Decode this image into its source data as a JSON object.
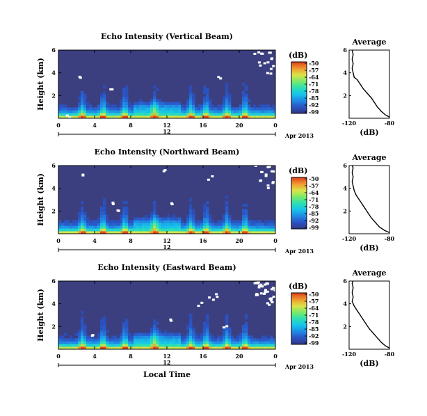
{
  "chart_data": [
    {
      "type": "heatmap",
      "title": "Echo Intensity (Vertical Beam)",
      "xlabel": "",
      "ylabel": "Height (km)",
      "x_ticks": [
        "0",
        "4",
        "8",
        "12",
        "16",
        "20",
        "0"
      ],
      "y_ticks": [
        "2",
        "4",
        "6"
      ],
      "xlim": [
        0,
        24
      ],
      "ylim": [
        0,
        6
      ],
      "date_marker": "12",
      "date_label": "Apr 2013",
      "colorbar": {
        "title": "(dB)",
        "ticks": [
          "-50",
          "-57",
          "-64",
          "-71",
          "-78",
          "-85",
          "-92",
          "-99"
        ],
        "range": [
          -99,
          -50
        ]
      },
      "profile": {
        "title": "Average",
        "xlabel": "(dB)",
        "x_ticks": [
          "-120",
          "-80"
        ],
        "y_ticks": [
          "2",
          "4",
          "6"
        ],
        "xlim": [
          -120,
          -80
        ],
        "ylim": [
          0,
          6
        ],
        "points": [
          [
            -80,
            0.1
          ],
          [
            -84,
            0.3
          ],
          [
            -88,
            0.6
          ],
          [
            -92,
            1.0
          ],
          [
            -95,
            1.4
          ],
          [
            -98,
            1.8
          ],
          [
            -102,
            2.2
          ],
          [
            -106,
            2.6
          ],
          [
            -109,
            3.0
          ],
          [
            -112,
            3.4
          ],
          [
            -115,
            3.6
          ],
          [
            -116,
            4.0
          ],
          [
            -117,
            4.4
          ],
          [
            -116,
            4.8
          ],
          [
            -117,
            5.2
          ],
          [
            -116,
            5.6
          ],
          [
            -117,
            6.0
          ]
        ]
      }
    },
    {
      "type": "heatmap",
      "title": "Echo Intensity (Northward Beam)",
      "xlabel": "",
      "ylabel": "Height (km)",
      "x_ticks": [
        "0",
        "4",
        "8",
        "12",
        "16",
        "20",
        "0"
      ],
      "y_ticks": [
        "2",
        "4",
        "6"
      ],
      "xlim": [
        0,
        24
      ],
      "ylim": [
        0,
        6
      ],
      "date_marker": "12",
      "date_label": "Apr 2013",
      "colorbar": {
        "title": "(dB)",
        "ticks": [
          "-50",
          "-57",
          "-64",
          "-71",
          "-78",
          "-85",
          "-92",
          "-99"
        ],
        "range": [
          -99,
          -50
        ]
      },
      "profile": {
        "title": "Average",
        "xlabel": "(dB)",
        "x_ticks": [
          "-120",
          "-80"
        ],
        "y_ticks": [
          "2",
          "4",
          "6"
        ],
        "xlim": [
          -120,
          -80
        ],
        "ylim": [
          0,
          6
        ],
        "points": [
          [
            -80,
            0.1
          ],
          [
            -85,
            0.3
          ],
          [
            -90,
            0.6
          ],
          [
            -94,
            1.0
          ],
          [
            -98,
            1.4
          ],
          [
            -101,
            1.8
          ],
          [
            -104,
            2.2
          ],
          [
            -107,
            2.6
          ],
          [
            -110,
            3.0
          ],
          [
            -113,
            3.4
          ],
          [
            -115,
            3.8
          ],
          [
            -116,
            4.2
          ],
          [
            -117,
            4.6
          ],
          [
            -116,
            5.0
          ],
          [
            -117,
            5.4
          ],
          [
            -116,
            5.8
          ],
          [
            -117,
            6.0
          ]
        ]
      }
    },
    {
      "type": "heatmap",
      "title": "Echo Intensity (Eastward Beam)",
      "xlabel": "Local Time",
      "ylabel": "Height (km)",
      "x_ticks": [
        "0",
        "4",
        "8",
        "12",
        "16",
        "20",
        "0"
      ],
      "y_ticks": [
        "2",
        "4",
        "6"
      ],
      "xlim": [
        0,
        24
      ],
      "ylim": [
        0,
        6
      ],
      "date_marker": "12",
      "date_label": "Apr 2013",
      "colorbar": {
        "title": "(dB)",
        "ticks": [
          "-50",
          "-57",
          "-64",
          "-71",
          "-78",
          "-85",
          "-92",
          "-99"
        ],
        "range": [
          -99,
          -50
        ]
      },
      "profile": {
        "title": "Average",
        "xlabel": "(dB)",
        "x_ticks": [
          "-120",
          "-80"
        ],
        "y_ticks": [
          "2",
          "4",
          "6"
        ],
        "xlim": [
          -120,
          -80
        ],
        "ylim": [
          0,
          6
        ],
        "points": [
          [
            -80,
            0.1
          ],
          [
            -84,
            0.3
          ],
          [
            -88,
            0.6
          ],
          [
            -92,
            1.0
          ],
          [
            -96,
            1.4
          ],
          [
            -100,
            1.8
          ],
          [
            -103,
            2.2
          ],
          [
            -106,
            2.6
          ],
          [
            -109,
            3.0
          ],
          [
            -112,
            3.4
          ],
          [
            -115,
            3.8
          ],
          [
            -117,
            4.2
          ],
          [
            -116,
            4.6
          ],
          [
            -117,
            5.0
          ],
          [
            -116,
            5.4
          ],
          [
            -117,
            5.8
          ],
          [
            -116,
            6.0
          ]
        ]
      }
    }
  ],
  "colors": {
    "background_field": "#3b3f80",
    "colormap": [
      "#2f3a8f",
      "#2a57c8",
      "#1f8fe6",
      "#17c6e8",
      "#2ee0b0",
      "#7be86a",
      "#d8e64a",
      "#f0a030",
      "#e04a20"
    ]
  }
}
